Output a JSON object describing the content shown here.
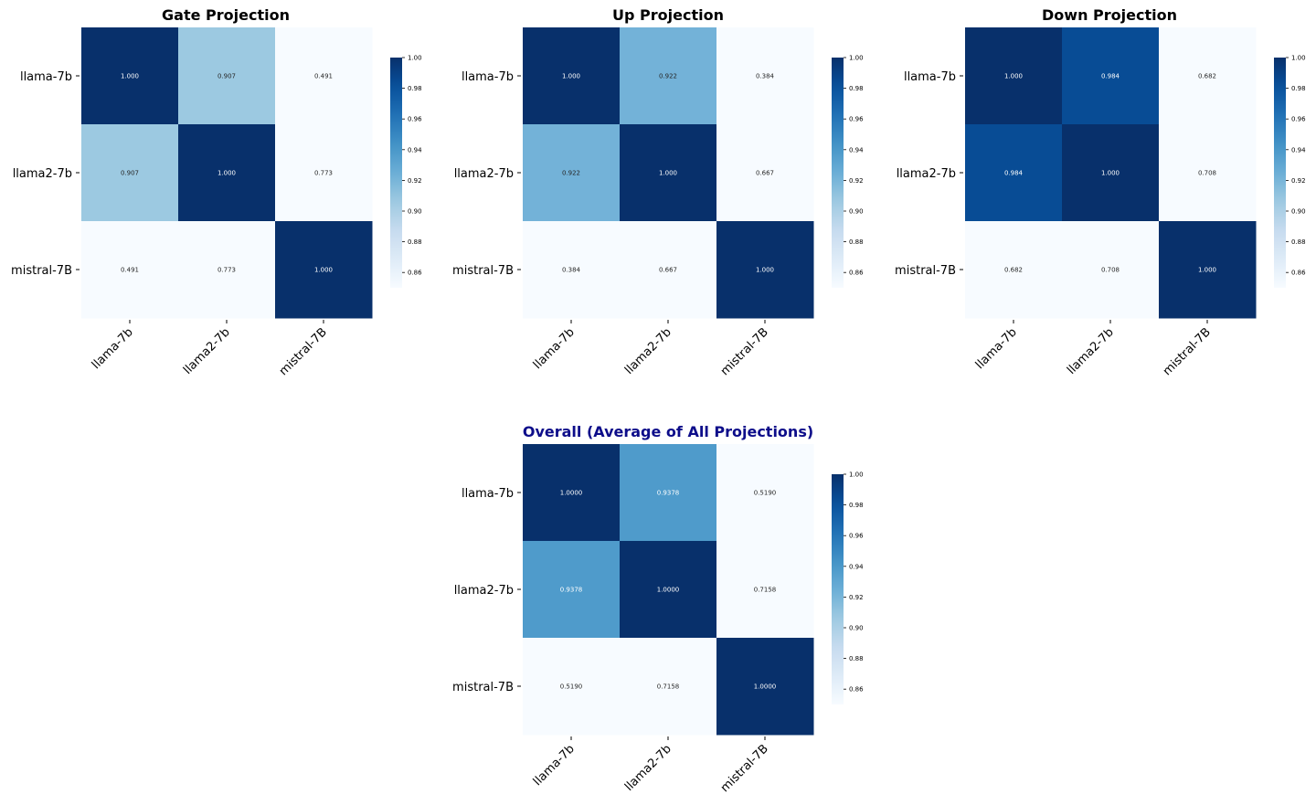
{
  "chart_data": [
    {
      "type": "heatmap",
      "title": "Gate Projection",
      "title_color": "#000000",
      "rows": [
        "llama-7b",
        "llama2-7b",
        "mistral-7B"
      ],
      "cols": [
        "llama-7b",
        "llama2-7b",
        "mistral-7B"
      ],
      "values": [
        [
          1.0,
          0.907,
          0.491
        ],
        [
          0.907,
          1.0,
          0.773
        ],
        [
          0.491,
          0.773,
          1.0
        ]
      ],
      "cell_labels": [
        [
          "1.000",
          "0.907",
          "0.491"
        ],
        [
          "0.907",
          "1.000",
          "0.773"
        ],
        [
          "0.491",
          "0.773",
          "1.000"
        ]
      ],
      "colormap": "Blues",
      "vmin": 0.85,
      "vmax": 1.0,
      "colorbar_ticks": [
        "0.86",
        "0.88",
        "0.90",
        "0.92",
        "0.94",
        "0.96",
        "0.98",
        "1.00"
      ]
    },
    {
      "type": "heatmap",
      "title": "Up Projection",
      "title_color": "#000000",
      "rows": [
        "llama-7b",
        "llama2-7b",
        "mistral-7B"
      ],
      "cols": [
        "llama-7b",
        "llama2-7b",
        "mistral-7B"
      ],
      "values": [
        [
          1.0,
          0.922,
          0.384
        ],
        [
          0.922,
          1.0,
          0.667
        ],
        [
          0.384,
          0.667,
          1.0
        ]
      ],
      "cell_labels": [
        [
          "1.000",
          "0.922",
          "0.384"
        ],
        [
          "0.922",
          "1.000",
          "0.667"
        ],
        [
          "0.384",
          "0.667",
          "1.000"
        ]
      ],
      "colormap": "Blues",
      "vmin": 0.85,
      "vmax": 1.0,
      "colorbar_ticks": [
        "0.86",
        "0.88",
        "0.90",
        "0.92",
        "0.94",
        "0.96",
        "0.98",
        "1.00"
      ]
    },
    {
      "type": "heatmap",
      "title": "Down Projection",
      "title_color": "#000000",
      "rows": [
        "llama-7b",
        "llama2-7b",
        "mistral-7B"
      ],
      "cols": [
        "llama-7b",
        "llama2-7b",
        "mistral-7B"
      ],
      "values": [
        [
          1.0,
          0.984,
          0.682
        ],
        [
          0.984,
          1.0,
          0.708
        ],
        [
          0.682,
          0.708,
          1.0
        ]
      ],
      "cell_labels": [
        [
          "1.000",
          "0.984",
          "0.682"
        ],
        [
          "0.984",
          "1.000",
          "0.708"
        ],
        [
          "0.682",
          "0.708",
          "1.000"
        ]
      ],
      "colormap": "Blues",
      "vmin": 0.85,
      "vmax": 1.0,
      "colorbar_ticks": [
        "0.86",
        "0.88",
        "0.90",
        "0.92",
        "0.94",
        "0.96",
        "0.98",
        "1.00"
      ]
    },
    {
      "type": "heatmap",
      "title": "Overall (Average of All Projections)",
      "title_color": "#0d0d8a",
      "rows": [
        "llama-7b",
        "llama2-7b",
        "mistral-7B"
      ],
      "cols": [
        "llama-7b",
        "llama2-7b",
        "mistral-7B"
      ],
      "values": [
        [
          1.0,
          0.9378,
          0.519
        ],
        [
          0.9378,
          1.0,
          0.7158
        ],
        [
          0.519,
          0.7158,
          1.0
        ]
      ],
      "cell_labels": [
        [
          "1.0000",
          "0.9378",
          "0.5190"
        ],
        [
          "0.9378",
          "1.0000",
          "0.7158"
        ],
        [
          "0.5190",
          "0.7158",
          "1.0000"
        ]
      ],
      "colormap": "Blues",
      "vmin": 0.85,
      "vmax": 1.0,
      "colorbar_ticks": [
        "0.86",
        "0.88",
        "0.90",
        "0.92",
        "0.94",
        "0.96",
        "0.98",
        "1.00"
      ]
    }
  ]
}
